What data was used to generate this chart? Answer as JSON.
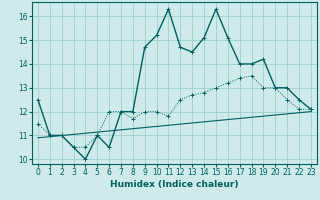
{
  "xlabel": "Humidex (Indice chaleur)",
  "background_color": "#ceeaea",
  "grid_color": "#9fcece",
  "line_color": "#006060",
  "xlim": [
    -0.5,
    23.5
  ],
  "ylim": [
    9.8,
    16.6
  ],
  "yticks": [
    10,
    11,
    12,
    13,
    14,
    15,
    16
  ],
  "xticks": [
    0,
    1,
    2,
    3,
    4,
    5,
    6,
    7,
    8,
    9,
    10,
    11,
    12,
    13,
    14,
    15,
    16,
    17,
    18,
    19,
    20,
    21,
    22,
    23
  ],
  "curve1_x": [
    0,
    1,
    2,
    3,
    4,
    5,
    6,
    7,
    8,
    9,
    10,
    11,
    12,
    13,
    14,
    15,
    16,
    17,
    18,
    19,
    20,
    21,
    22,
    23
  ],
  "curve1_y": [
    12.5,
    11.0,
    11.0,
    10.5,
    10.0,
    11.0,
    10.5,
    12.0,
    12.0,
    14.7,
    15.2,
    16.3,
    14.7,
    14.5,
    15.1,
    16.3,
    15.1,
    14.0,
    14.0,
    14.2,
    13.0,
    13.0,
    12.5,
    12.1
  ],
  "curve2_x": [
    0,
    1,
    2,
    3,
    4,
    5,
    6,
    7,
    8,
    9,
    10,
    11,
    12,
    13,
    14,
    15,
    16,
    17,
    18,
    19,
    20,
    21,
    22,
    23
  ],
  "curve2_y": [
    11.5,
    11.0,
    11.0,
    10.5,
    10.5,
    11.0,
    12.0,
    12.0,
    11.7,
    12.0,
    12.0,
    11.8,
    12.5,
    12.7,
    12.8,
    13.0,
    13.2,
    13.4,
    13.5,
    13.0,
    13.0,
    12.5,
    12.1,
    12.1
  ],
  "ref_line_x": [
    0,
    23
  ],
  "ref_line_y": [
    10.9,
    12.0
  ]
}
